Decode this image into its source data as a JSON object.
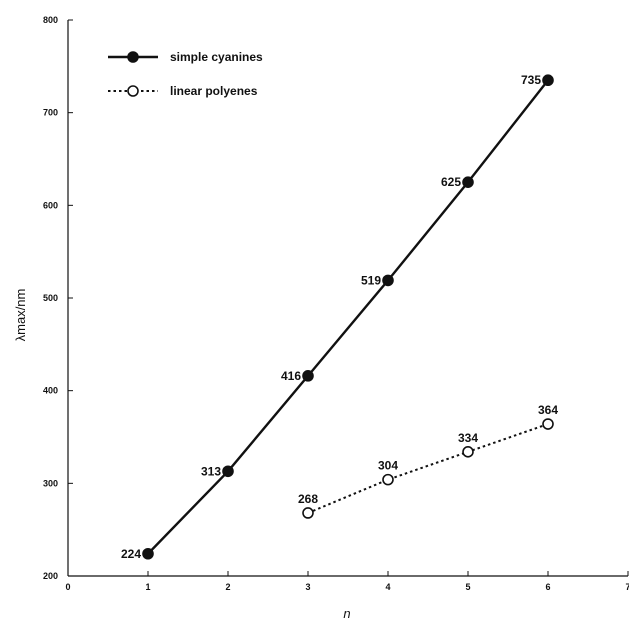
{
  "chart_data": {
    "type": "line",
    "title": "",
    "xlabel": "n",
    "ylabel": "λmax/nm",
    "xlim": [
      0,
      7
    ],
    "ylim": [
      200,
      800
    ],
    "x_ticks": [
      "0",
      "1",
      "2",
      "3",
      "4",
      "5",
      "6",
      "7"
    ],
    "y_ticks": [
      "200",
      "300",
      "400",
      "500",
      "600",
      "700",
      "800"
    ],
    "grid": false,
    "legend_position": "top-left",
    "series": [
      {
        "name": "simple cyanines",
        "marker": "filled-circle",
        "line_style": "solid",
        "color": "#111111",
        "x": [
          1,
          2,
          3,
          4,
          5,
          6
        ],
        "y": [
          224,
          313,
          416,
          519,
          625,
          735
        ],
        "labels": [
          "224",
          "313",
          "416",
          "519",
          "625",
          "735"
        ]
      },
      {
        "name": "linear polyenes",
        "marker": "open-circle",
        "line_style": "dotted",
        "color": "#111111",
        "x": [
          3,
          4,
          5,
          6
        ],
        "y": [
          268,
          304,
          334,
          364
        ],
        "labels": [
          "268",
          "304",
          "334",
          "364"
        ]
      }
    ]
  }
}
